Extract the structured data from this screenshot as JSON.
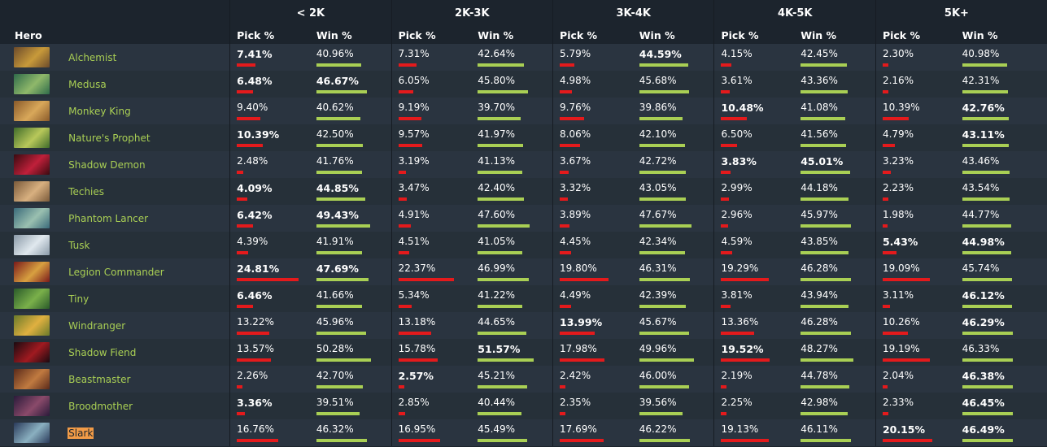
{
  "brackets": [
    "< 2K",
    "2K-3K",
    "3K-4K",
    "4K-5K",
    "5K+"
  ],
  "columns": {
    "hero": "Hero",
    "pick": "Pick %",
    "win": "Win %"
  },
  "colors": {
    "background": "#1c242d",
    "row_a": "#2a3440",
    "row_b": "#263039",
    "hero_name": "#a9cf54",
    "pick_bar": "#e41a1c",
    "win_bar": "#a9cf54",
    "highlight": "#f29b47"
  },
  "heroes": [
    {
      "name": "Alchemist",
      "icon": "alchemist-portrait",
      "stats": [
        [
          "7.41%",
          "40.96%"
        ],
        [
          "7.31%",
          "42.64%"
        ],
        [
          "5.79%",
          "44.59%"
        ],
        [
          "4.15%",
          "42.45%"
        ],
        [
          "2.30%",
          "40.98%"
        ]
      ],
      "best": [
        [
          true,
          false
        ],
        [
          false,
          false
        ],
        [
          false,
          true
        ],
        [
          false,
          false
        ],
        [
          false,
          false
        ]
      ],
      "colors": [
        "#6b4a2b",
        "#c89a3a"
      ]
    },
    {
      "name": "Medusa",
      "icon": "medusa-portrait",
      "stats": [
        [
          "6.48%",
          "46.67%"
        ],
        [
          "6.05%",
          "45.80%"
        ],
        [
          "4.98%",
          "45.68%"
        ],
        [
          "3.61%",
          "43.36%"
        ],
        [
          "2.16%",
          "42.31%"
        ]
      ],
      "best": [
        [
          true,
          true
        ],
        [
          false,
          false
        ],
        [
          false,
          false
        ],
        [
          false,
          false
        ],
        [
          false,
          false
        ]
      ],
      "colors": [
        "#2f6b4a",
        "#8fb86a"
      ]
    },
    {
      "name": "Monkey King",
      "icon": "monkey-king-portrait",
      "stats": [
        [
          "9.40%",
          "40.62%"
        ],
        [
          "9.19%",
          "39.70%"
        ],
        [
          "9.76%",
          "39.86%"
        ],
        [
          "10.48%",
          "41.08%"
        ],
        [
          "10.39%",
          "42.76%"
        ]
      ],
      "best": [
        [
          false,
          false
        ],
        [
          false,
          false
        ],
        [
          false,
          false
        ],
        [
          true,
          false
        ],
        [
          false,
          true
        ]
      ],
      "colors": [
        "#8a5a2a",
        "#d9a85a"
      ]
    },
    {
      "name": "Nature's Prophet",
      "icon": "natures-prophet-portrait",
      "stats": [
        [
          "10.39%",
          "42.50%"
        ],
        [
          "9.57%",
          "41.97%"
        ],
        [
          "8.06%",
          "42.10%"
        ],
        [
          "6.50%",
          "41.56%"
        ],
        [
          "4.79%",
          "43.11%"
        ]
      ],
      "best": [
        [
          true,
          false
        ],
        [
          false,
          false
        ],
        [
          false,
          false
        ],
        [
          false,
          false
        ],
        [
          false,
          true
        ]
      ],
      "colors": [
        "#3f6b2a",
        "#b8c85a"
      ]
    },
    {
      "name": "Shadow Demon",
      "icon": "shadow-demon-portrait",
      "stats": [
        [
          "2.48%",
          "41.76%"
        ],
        [
          "3.19%",
          "41.13%"
        ],
        [
          "3.67%",
          "42.72%"
        ],
        [
          "3.83%",
          "45.01%"
        ],
        [
          "3.23%",
          "43.46%"
        ]
      ],
      "best": [
        [
          false,
          false
        ],
        [
          false,
          false
        ],
        [
          false,
          false
        ],
        [
          true,
          true
        ],
        [
          false,
          false
        ]
      ],
      "colors": [
        "#3a0a10",
        "#c0203a"
      ]
    },
    {
      "name": "Techies",
      "icon": "techies-portrait",
      "stats": [
        [
          "4.09%",
          "44.85%"
        ],
        [
          "3.47%",
          "42.40%"
        ],
        [
          "3.32%",
          "43.05%"
        ],
        [
          "2.99%",
          "44.18%"
        ],
        [
          "2.23%",
          "43.54%"
        ]
      ],
      "best": [
        [
          true,
          true
        ],
        [
          false,
          false
        ],
        [
          false,
          false
        ],
        [
          false,
          false
        ],
        [
          false,
          false
        ]
      ],
      "colors": [
        "#7a5a3a",
        "#d8b080"
      ]
    },
    {
      "name": "Phantom Lancer",
      "icon": "phantom-lancer-portrait",
      "stats": [
        [
          "6.42%",
          "49.43%"
        ],
        [
          "4.91%",
          "47.60%"
        ],
        [
          "3.89%",
          "47.67%"
        ],
        [
          "2.96%",
          "45.97%"
        ],
        [
          "1.98%",
          "44.77%"
        ]
      ],
      "best": [
        [
          true,
          true
        ],
        [
          false,
          false
        ],
        [
          false,
          false
        ],
        [
          false,
          false
        ],
        [
          false,
          false
        ]
      ],
      "colors": [
        "#3a6a7a",
        "#9ac0b0"
      ]
    },
    {
      "name": "Tusk",
      "icon": "tusk-portrait",
      "stats": [
        [
          "4.39%",
          "41.91%"
        ],
        [
          "4.51%",
          "41.05%"
        ],
        [
          "4.45%",
          "42.34%"
        ],
        [
          "4.59%",
          "43.85%"
        ],
        [
          "5.43%",
          "44.98%"
        ]
      ],
      "best": [
        [
          false,
          false
        ],
        [
          false,
          false
        ],
        [
          false,
          false
        ],
        [
          false,
          false
        ],
        [
          true,
          true
        ]
      ],
      "colors": [
        "#8a9aa8",
        "#e0e8ee"
      ]
    },
    {
      "name": "Legion Commander",
      "icon": "legion-commander-portrait",
      "stats": [
        [
          "24.81%",
          "47.69%"
        ],
        [
          "22.37%",
          "46.99%"
        ],
        [
          "19.80%",
          "46.31%"
        ],
        [
          "19.29%",
          "46.28%"
        ],
        [
          "19.09%",
          "45.74%"
        ]
      ],
      "best": [
        [
          true,
          true
        ],
        [
          false,
          false
        ],
        [
          false,
          false
        ],
        [
          false,
          false
        ],
        [
          false,
          false
        ]
      ],
      "colors": [
        "#7a1a1a",
        "#d8a040"
      ]
    },
    {
      "name": "Tiny",
      "icon": "tiny-portrait",
      "stats": [
        [
          "6.46%",
          "41.66%"
        ],
        [
          "5.34%",
          "41.22%"
        ],
        [
          "4.49%",
          "42.39%"
        ],
        [
          "3.81%",
          "43.94%"
        ],
        [
          "3.11%",
          "46.12%"
        ]
      ],
      "best": [
        [
          true,
          false
        ],
        [
          false,
          false
        ],
        [
          false,
          false
        ],
        [
          false,
          false
        ],
        [
          false,
          true
        ]
      ],
      "colors": [
        "#2a5a2a",
        "#7ab04a"
      ]
    },
    {
      "name": "Windranger",
      "icon": "windranger-portrait",
      "stats": [
        [
          "13.22%",
          "45.96%"
        ],
        [
          "13.18%",
          "44.65%"
        ],
        [
          "13.99%",
          "45.67%"
        ],
        [
          "13.36%",
          "46.28%"
        ],
        [
          "10.26%",
          "46.29%"
        ]
      ],
      "best": [
        [
          false,
          false
        ],
        [
          false,
          false
        ],
        [
          true,
          false
        ],
        [
          false,
          false
        ],
        [
          false,
          true
        ]
      ],
      "colors": [
        "#6a7a2a",
        "#e0b040"
      ]
    },
    {
      "name": "Shadow Fiend",
      "icon": "shadow-fiend-portrait",
      "stats": [
        [
          "13.57%",
          "50.28%"
        ],
        [
          "15.78%",
          "51.57%"
        ],
        [
          "17.98%",
          "49.96%"
        ],
        [
          "19.52%",
          "48.27%"
        ],
        [
          "19.19%",
          "46.33%"
        ]
      ],
      "best": [
        [
          false,
          false
        ],
        [
          false,
          true
        ],
        [
          false,
          false
        ],
        [
          true,
          false
        ],
        [
          false,
          false
        ]
      ],
      "colors": [
        "#1a0a10",
        "#a01a20"
      ]
    },
    {
      "name": "Beastmaster",
      "icon": "beastmaster-portrait",
      "stats": [
        [
          "2.26%",
          "42.70%"
        ],
        [
          "2.57%",
          "45.21%"
        ],
        [
          "2.42%",
          "46.00%"
        ],
        [
          "2.19%",
          "44.78%"
        ],
        [
          "2.04%",
          "46.38%"
        ]
      ],
      "best": [
        [
          false,
          false
        ],
        [
          true,
          false
        ],
        [
          false,
          false
        ],
        [
          false,
          false
        ],
        [
          false,
          true
        ]
      ],
      "colors": [
        "#5a2a1a",
        "#c07a40"
      ]
    },
    {
      "name": "Broodmother",
      "icon": "broodmother-portrait",
      "stats": [
        [
          "3.36%",
          "39.51%"
        ],
        [
          "2.85%",
          "40.44%"
        ],
        [
          "2.35%",
          "39.56%"
        ],
        [
          "2.25%",
          "42.98%"
        ],
        [
          "2.33%",
          "46.45%"
        ]
      ],
      "best": [
        [
          true,
          false
        ],
        [
          false,
          false
        ],
        [
          false,
          false
        ],
        [
          false,
          false
        ],
        [
          false,
          true
        ]
      ],
      "colors": [
        "#2a1a3a",
        "#8a4a6a"
      ]
    },
    {
      "name": "Slark",
      "icon": "slark-portrait",
      "highlight": true,
      "stats": [
        [
          "16.76%",
          "46.32%"
        ],
        [
          "16.95%",
          "45.49%"
        ],
        [
          "17.69%",
          "46.22%"
        ],
        [
          "19.13%",
          "46.11%"
        ],
        [
          "20.15%",
          "46.49%"
        ]
      ],
      "best": [
        [
          false,
          false
        ],
        [
          false,
          false
        ],
        [
          false,
          false
        ],
        [
          false,
          false
        ],
        [
          true,
          true
        ]
      ],
      "colors": [
        "#2a3a5a",
        "#8ab0c0"
      ]
    }
  ]
}
